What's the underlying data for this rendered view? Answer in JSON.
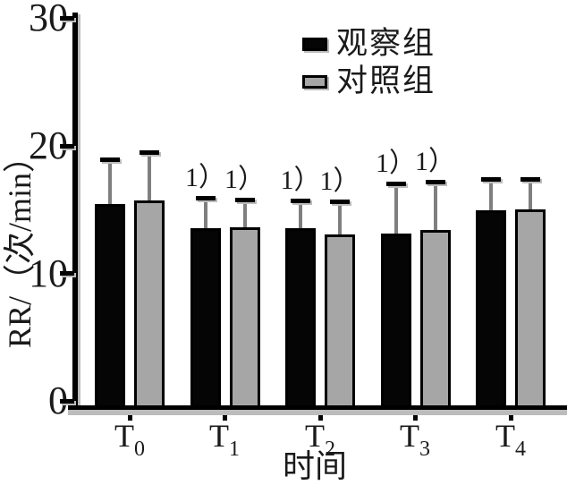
{
  "figure": {
    "background": "#ffffff"
  },
  "chart_data": {
    "type": "bar",
    "title": "",
    "xlabel": "时间",
    "ylabel": "RR/（次/min）",
    "categories": [
      "T0",
      "T1",
      "T2",
      "T3",
      "T4"
    ],
    "category_labels": [
      {
        "base": "T",
        "sub": "0"
      },
      {
        "base": "T",
        "sub": "1"
      },
      {
        "base": "T",
        "sub": "2"
      },
      {
        "base": "T",
        "sub": "3"
      },
      {
        "base": "T",
        "sub": "4"
      }
    ],
    "yticks": [
      30,
      20,
      10,
      0
    ],
    "ylim": [
      0,
      30
    ],
    "grid": false,
    "legend_position": "top-right-inside",
    "series": [
      {
        "name": "观察组",
        "color": "#050505",
        "border_color": "#000000",
        "values": [
          15.4,
          13.5,
          13.5,
          13.1,
          14.9
        ],
        "errors": [
          3.5,
          2.4,
          2.2,
          3.9,
          2.5
        ]
      },
      {
        "name": "对照组",
        "color": "#a6a6a6",
        "border_color": "#000000",
        "values": [
          15.7,
          13.6,
          13.0,
          13.4,
          15.0
        ],
        "errors": [
          3.8,
          2.2,
          2.6,
          3.8,
          2.4
        ]
      }
    ],
    "error_bar": {
      "line_color": "#7f7f7f",
      "cap_color": "#000000"
    },
    "sig": [
      [
        "",
        ""
      ],
      [
        "1）",
        "1）"
      ],
      [
        "1）",
        "1）"
      ],
      [
        "1）",
        "1）"
      ],
      [
        "",
        ""
      ]
    ],
    "axis_color": "#000000",
    "shadow_color": "#bcbcbc"
  }
}
